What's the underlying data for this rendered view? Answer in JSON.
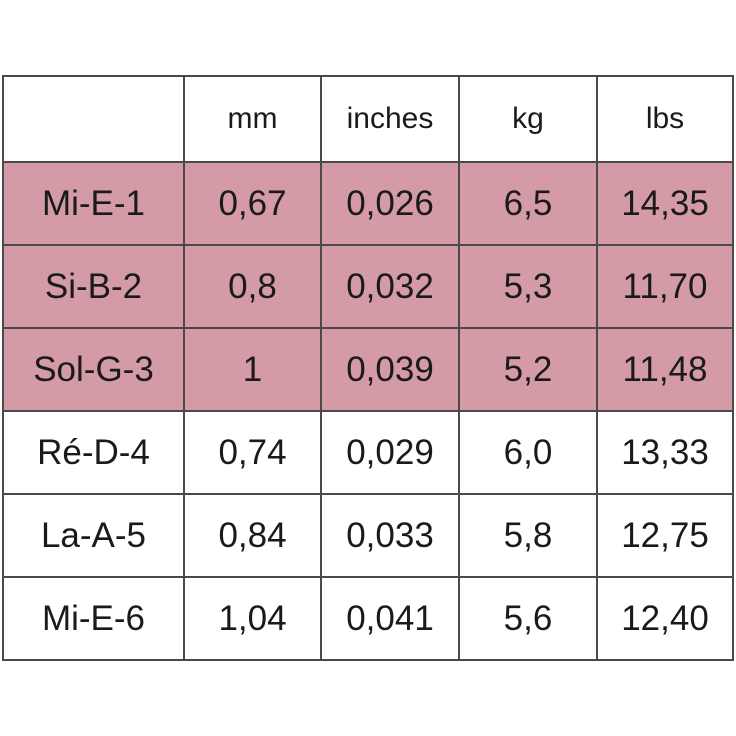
{
  "table": {
    "header": [
      "mm",
      "inches",
      "kg",
      "lbs"
    ],
    "highlight_color": "#d49ba6",
    "rows": [
      {
        "cells": [
          "Mi-E-1",
          "0,67",
          "0,026",
          "6,5",
          "14,35"
        ],
        "highlighted": true
      },
      {
        "cells": [
          "Si-B-2",
          "0,8",
          "0,032",
          "5,3",
          "11,70"
        ],
        "highlighted": true
      },
      {
        "cells": [
          "Sol-G-3",
          "1",
          "0,039",
          "5,2",
          "11,48"
        ],
        "highlighted": true
      },
      {
        "cells": [
          "Ré-D-4",
          "0,74",
          "0,029",
          "6,0",
          "13,33"
        ],
        "highlighted": false
      },
      {
        "cells": [
          "La-A-5",
          "0,84",
          "0,033",
          "5,8",
          "12,75"
        ],
        "highlighted": false
      },
      {
        "cells": [
          "Mi-E-6",
          "1,04",
          "0,041",
          "5,6",
          "12,40"
        ],
        "highlighted": false
      }
    ]
  }
}
